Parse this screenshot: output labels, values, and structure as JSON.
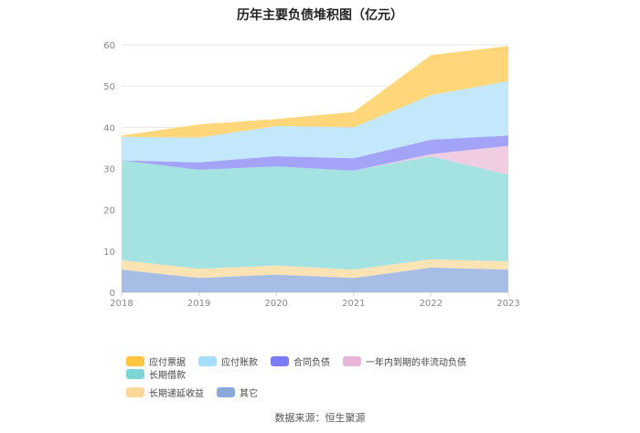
{
  "chart_data": {
    "type": "area",
    "stacked": true,
    "title": "历年主要负债堆积图（亿元）",
    "categories": [
      "2018",
      "2019",
      "2020",
      "2021",
      "2022",
      "2023"
    ],
    "yticks": [
      "0",
      "10",
      "20",
      "30",
      "40",
      "50",
      "60"
    ],
    "ylim": [
      0,
      60
    ],
    "series": [
      {
        "name": "其它",
        "color": "#a8bde6",
        "values": [
          5.5,
          3.5,
          4.3,
          3.5,
          6.0,
          5.5
        ]
      },
      {
        "name": "长期递延收益",
        "color": "#fce3b3",
        "values": [
          2.3,
          2.2,
          2.2,
          2.0,
          2.0,
          2.0
        ]
      },
      {
        "name": "长期借款",
        "color": "#a5e3e3",
        "values": [
          24.2,
          24.0,
          24.0,
          24.0,
          25.0,
          21.0
        ]
      },
      {
        "name": "一年内到期的非流动负债",
        "color": "#f1cde3",
        "values": [
          0,
          0,
          0,
          0,
          0.5,
          7.0
        ]
      },
      {
        "name": "合同负债",
        "color": "#a3a3f7",
        "values": [
          0,
          1.8,
          2.5,
          3.0,
          3.5,
          2.5
        ]
      },
      {
        "name": "应付账款",
        "color": "#c3e7fb",
        "values": [
          5.7,
          6.0,
          7.3,
          7.5,
          10.8,
          13.2
        ]
      },
      {
        "name": "应付票据",
        "color": "#ffd679",
        "values": [
          0.3,
          3.2,
          1.7,
          3.7,
          9.7,
          8.5
        ]
      }
    ],
    "legend": [
      {
        "name": "应付票据",
        "color": "#ffc53d"
      },
      {
        "name": "应付账款",
        "color": "#a6dcfc"
      },
      {
        "name": "合同负债",
        "color": "#7b7bf2"
      },
      {
        "name": "一年内到期的非流动负债",
        "color": "#e8b4d8"
      },
      {
        "name": "长期借款",
        "color": "#7fd6d6"
      },
      {
        "name": "长期递延收益",
        "color": "#fdd89a"
      },
      {
        "name": "其它",
        "color": "#8aaadc"
      }
    ],
    "legend_position": "bottom",
    "grid": true
  },
  "source": "数据来源：恒生聚源"
}
